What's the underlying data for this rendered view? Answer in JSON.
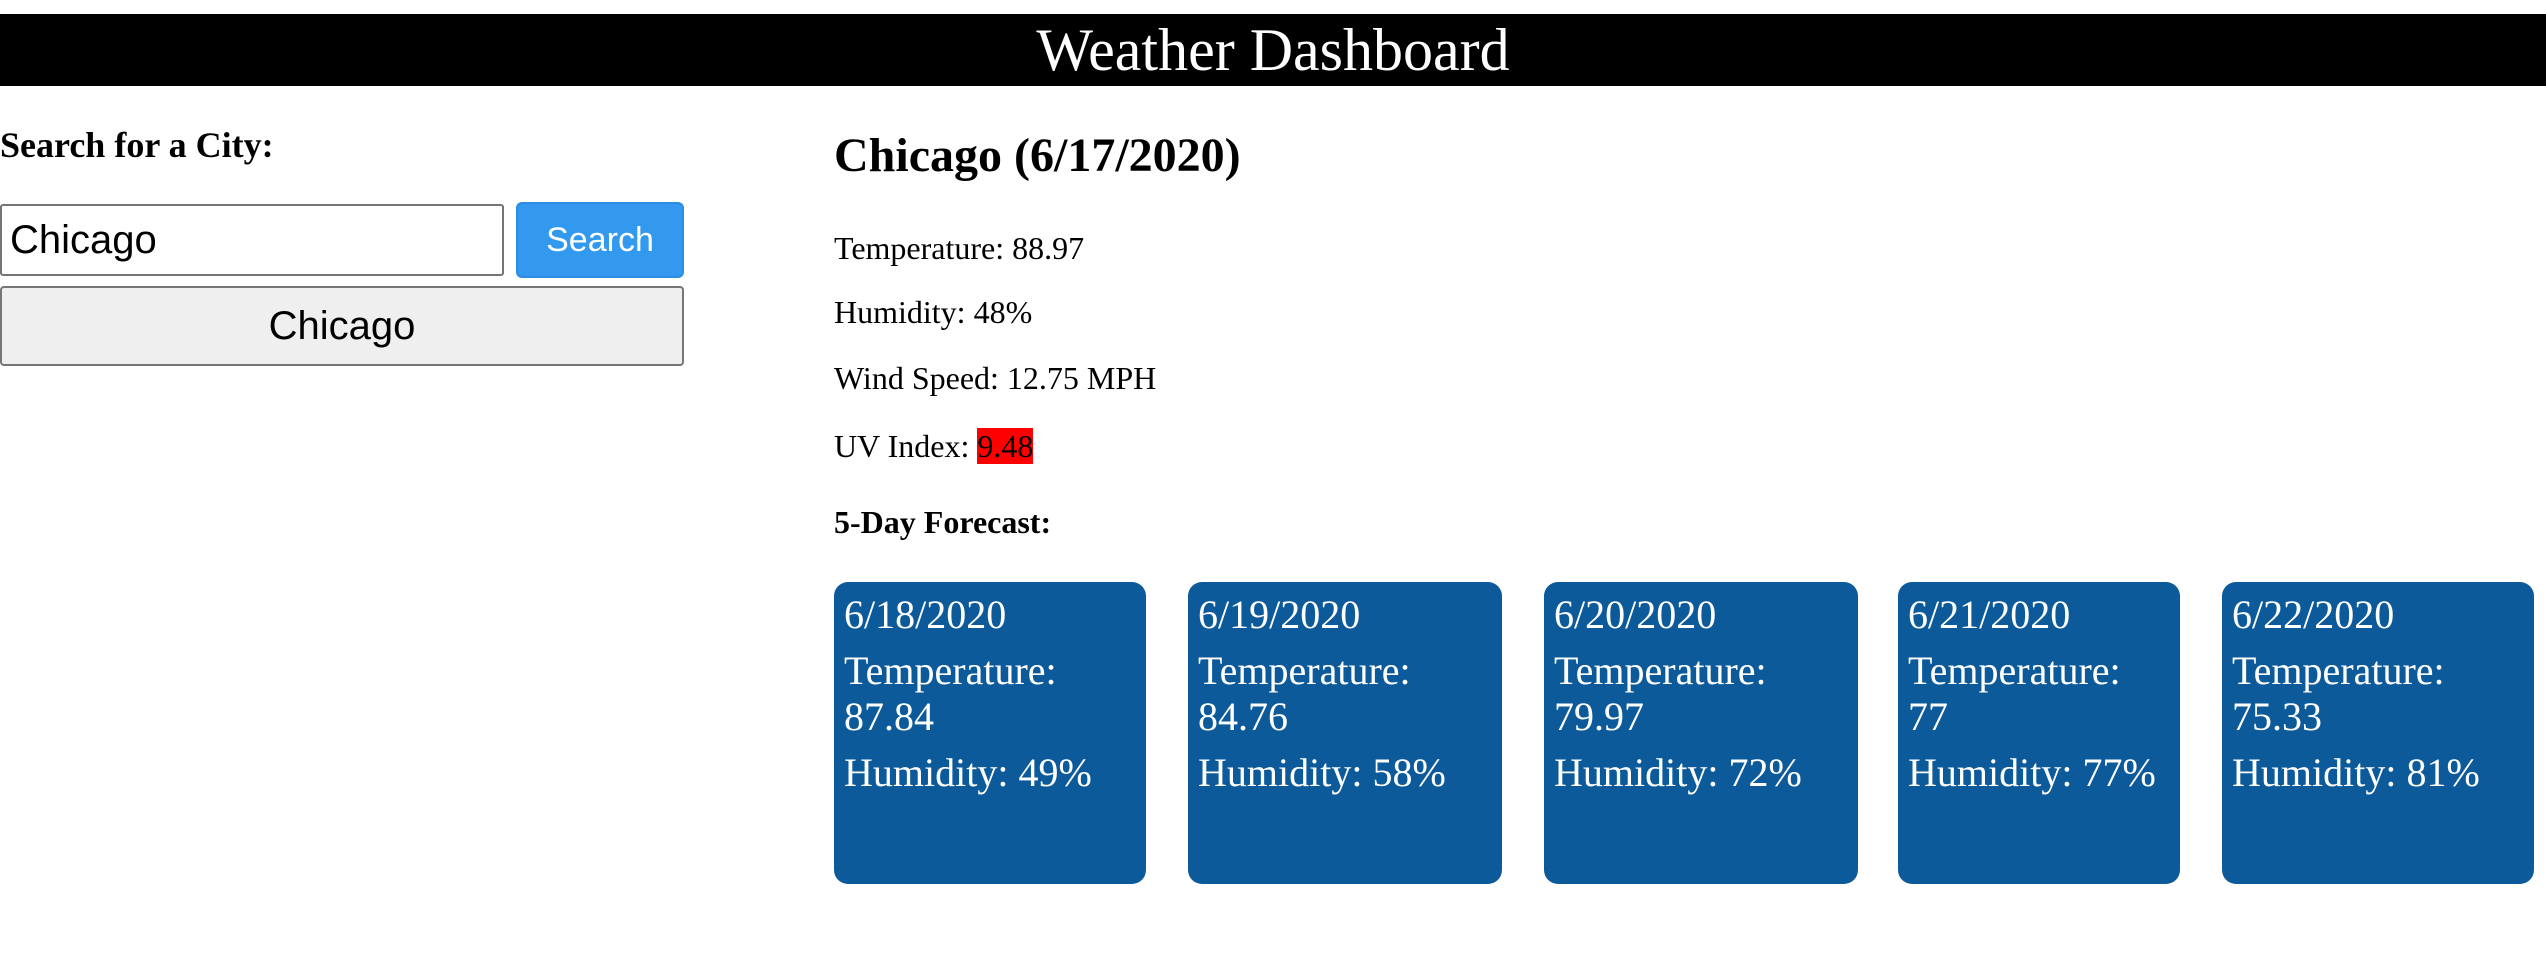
{
  "header": {
    "title": "Weather Dashboard"
  },
  "sidebar": {
    "search_label": "Search for a City:",
    "search_value": "Chicago",
    "search_button": "Search",
    "history": [
      "Chicago"
    ]
  },
  "current": {
    "title": "Chicago (6/17/2020)",
    "temperature": "Temperature: 88.97",
    "humidity": "Humidity: 48%",
    "wind": "Wind Speed: 12.75 MPH",
    "uv_label": "UV Index: ",
    "uv_value": "9.48",
    "uv_color": "#ff0000"
  },
  "forecast": {
    "heading": "5-Day Forecast:",
    "card_color": "#0d5a9a",
    "days": [
      {
        "date": "6/18/2020",
        "temp": "Temperature: 87.84",
        "humidity": "Humidity: 49%"
      },
      {
        "date": "6/19/2020",
        "temp": "Temperature: 84.76",
        "humidity": "Humidity: 58%"
      },
      {
        "date": "6/20/2020",
        "temp": "Temperature: 79.97",
        "humidity": "Humidity: 72%"
      },
      {
        "date": "6/21/2020",
        "temp": "Temperature: 77",
        "humidity": "Humidity: 77%"
      },
      {
        "date": "6/22/2020",
        "temp": "Temperature: 75.33",
        "humidity": "Humidity: 81%"
      }
    ]
  }
}
